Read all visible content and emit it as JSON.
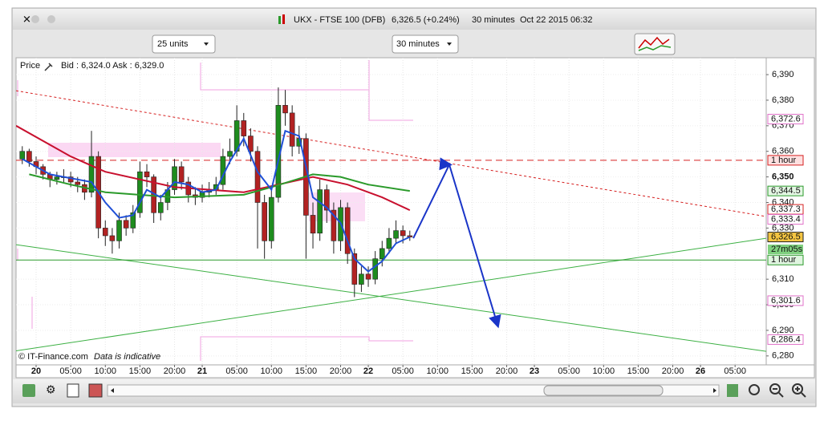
{
  "window": {
    "title": "UKX - FTSE 100 (DFB)",
    "price": "6,326.5 (+0.24%)",
    "interval": "30 minutes",
    "datetime": "Oct 22 2015 06:32"
  },
  "toolbar": {
    "units": "25 units",
    "timeframe": "30 minutes"
  },
  "chart_data": {
    "type": "candlestick",
    "label": "Price",
    "quote": "Bid : 6,324.0 Ask : 6,329.0",
    "copyright": "© IT-Finance.com",
    "note": "Data is indicative",
    "countdown": "27m05s",
    "xlim": [
      -2.9,
      105.5
    ],
    "ylim": [
      6276.5,
      6396.6
    ],
    "grid": true,
    "up_color": "#1e8c1e",
    "down_color": "#b22222",
    "xticks": [
      {
        "value": 0,
        "label": "20"
      },
      {
        "value": 5,
        "label": "05:00"
      },
      {
        "value": 10,
        "label": "10:00"
      },
      {
        "value": 15,
        "label": "15:00"
      },
      {
        "value": 20,
        "label": "20:00"
      },
      {
        "value": 24,
        "label": "21"
      },
      {
        "value": 29,
        "label": "05:00"
      },
      {
        "value": 34,
        "label": "10:00"
      },
      {
        "value": 39,
        "label": "15:00"
      },
      {
        "value": 44,
        "label": "20:00"
      },
      {
        "value": 48,
        "label": "22"
      },
      {
        "value": 53,
        "label": "05:00"
      },
      {
        "value": 58,
        "label": "10:00"
      },
      {
        "value": 63,
        "label": "15:00"
      },
      {
        "value": 68,
        "label": "20:00"
      },
      {
        "value": 72,
        "label": "23"
      },
      {
        "value": 77,
        "label": "05:00"
      },
      {
        "value": 82,
        "label": "10:00"
      },
      {
        "value": 87,
        "label": "15:00"
      },
      {
        "value": 92,
        "label": "20:00"
      },
      {
        "value": 96,
        "label": "26"
      },
      {
        "value": 101,
        "label": "05:00"
      }
    ],
    "yticks": [
      {
        "value": 6280,
        "label": "6,280"
      },
      {
        "value": 6290,
        "label": "6,290"
      },
      {
        "value": 6300,
        "label": "6,300"
      },
      {
        "value": 6310,
        "label": "6,310"
      },
      {
        "value": 6330,
        "label": "6,330"
      },
      {
        "value": 6340,
        "label": "6,340"
      },
      {
        "value": 6350,
        "label": "6,350",
        "bold": true
      },
      {
        "value": 6360,
        "label": "6,360"
      },
      {
        "value": 6370,
        "label": "6,370"
      },
      {
        "value": 6380,
        "label": "6,380"
      },
      {
        "value": 6390,
        "label": "6,390"
      }
    ],
    "x": [
      -2,
      -1,
      0,
      1,
      2,
      3,
      4,
      5,
      6,
      7,
      8,
      9,
      10,
      11,
      12,
      13,
      14,
      15,
      16,
      17,
      18,
      19,
      20,
      21,
      22,
      23,
      24,
      25,
      26,
      27,
      28,
      29,
      30,
      31,
      32,
      33,
      34,
      35,
      36,
      37,
      38,
      39,
      40,
      41,
      42,
      43,
      44,
      45,
      46,
      47,
      48,
      49,
      50,
      51,
      52,
      53,
      54
    ],
    "open": [
      6357,
      6360,
      6356,
      6354,
      6351,
      6349,
      6350,
      6350,
      6348,
      6347,
      6344,
      6358,
      6330,
      6327,
      6325,
      6333,
      6330,
      6336,
      6352,
      6350,
      6336,
      6340,
      6345,
      6354,
      6348,
      6343,
      6342,
      6344,
      6345,
      6347,
      6358,
      6360,
      6372,
      6366,
      6360,
      6340,
      6325,
      6342,
      6378,
      6375,
      6362,
      6365,
      6335,
      6328,
      6345,
      6337,
      6325,
      6338,
      6320,
      6308,
      6312,
      6310,
      6318,
      6322,
      6326,
      6329,
      6327
    ],
    "high": [
      6362,
      6361,
      6358,
      6355,
      6352,
      6352,
      6353,
      6352,
      6350,
      6349,
      6368,
      6360,
      6333,
      6330,
      6336,
      6335,
      6339,
      6356,
      6355,
      6351,
      6343,
      6348,
      6357,
      6356,
      6350,
      6346,
      6347,
      6348,
      6350,
      6361,
      6365,
      6378,
      6375,
      6369,
      6362,
      6343,
      6346,
      6385,
      6384,
      6378,
      6370,
      6367,
      6340,
      6349,
      6347,
      6340,
      6341,
      6340,
      6322,
      6315,
      6315,
      6321,
      6325,
      6330,
      6333,
      6331,
      6329
    ],
    "low": [
      6355,
      6354,
      6351,
      6349,
      6346,
      6347,
      6348,
      6346,
      6344,
      6341,
      6342,
      6326,
      6323,
      6320,
      6322,
      6327,
      6328,
      6334,
      6346,
      6332,
      6333,
      6337,
      6343,
      6345,
      6340,
      6339,
      6340,
      6342,
      6343,
      6345,
      6355,
      6358,
      6362,
      6356,
      6322,
      6318,
      6322,
      6340,
      6370,
      6358,
      6359,
      6318,
      6322,
      6325,
      6332,
      6320,
      6321,
      6316,
      6303,
      6305,
      6307,
      6308,
      6315,
      6320,
      6324,
      6324,
      6325
    ],
    "close": [
      6360,
      6356,
      6354,
      6351,
      6349,
      6350,
      6350,
      6348,
      6347,
      6344,
      6358,
      6330,
      6327,
      6325,
      6333,
      6330,
      6336,
      6352,
      6350,
      6336,
      6340,
      6345,
      6354,
      6348,
      6343,
      6342,
      6344,
      6345,
      6347,
      6358,
      6360,
      6372,
      6366,
      6360,
      6340,
      6325,
      6342,
      6378,
      6375,
      6362,
      6365,
      6335,
      6328,
      6345,
      6337,
      6325,
      6338,
      6320,
      6308,
      6312,
      6310,
      6318,
      6322,
      6326,
      6329,
      6327,
      6326.5
    ],
    "overlays": [
      {
        "color": "#c8102e",
        "width": 2,
        "x": [
          -2.9,
          5,
          10,
          20,
          30,
          40,
          45,
          50,
          54
        ],
        "values": [
          6370,
          6358,
          6352,
          6346,
          6344,
          6350,
          6347,
          6342,
          6337
        ]
      },
      {
        "color": "#2a9a2a",
        "width": 2,
        "x": [
          -1,
          5,
          10,
          20,
          30,
          34,
          40,
          44,
          48,
          54
        ],
        "values": [
          6351,
          6347,
          6344,
          6342,
          6343,
          6346,
          6351,
          6350,
          6347,
          6344.5
        ]
      },
      {
        "color": "#1f4fd6",
        "width": 2,
        "x": [
          -2,
          0,
          2,
          4,
          6,
          8,
          10,
          12,
          14,
          16,
          18,
          20,
          22,
          24,
          26,
          28,
          30,
          32,
          34,
          36,
          38,
          40,
          42,
          44,
          46,
          48,
          50,
          52,
          54
        ],
        "values": [
          6357,
          6354,
          6351,
          6350,
          6349,
          6348,
          6340,
          6334,
          6335,
          6345,
          6342,
          6348,
          6347,
          6344,
          6345,
          6356,
          6365,
          6352,
          6345,
          6368,
          6366,
          6342,
          6338,
          6332,
          6318,
          6313,
          6317,
          6324,
          6326.5
        ]
      }
    ],
    "trendlines": [
      {
        "color": "#d62020",
        "dash": true,
        "x": [
          -2.9,
          105.5
        ],
        "values": [
          6383.7,
          6334.5
        ]
      },
      {
        "color": "#3cb043",
        "dash": false,
        "x": [
          -2.9,
          105.5
        ],
        "values": [
          6323.5,
          6281.8
        ]
      },
      {
        "color": "#3cb043",
        "dash": false,
        "x": [
          -2.9,
          105.5
        ],
        "values": [
          6282,
          6326
        ]
      }
    ],
    "projection": {
      "color": "#1a35c8",
      "x": [
        54.5,
        59.7,
        66.7
      ],
      "values": [
        6326,
        6354.8,
        6292
      ]
    },
    "levels": [
      {
        "value": 6356.5,
        "label": "1 hour",
        "color": "#d62020",
        "fill": "#fde0e0",
        "dash": true
      },
      {
        "value": 6317.5,
        "label": "1 hour",
        "color": "#2a9a2a",
        "fill": "#e0f5e0",
        "dash": false
      }
    ],
    "price_labels": [
      {
        "value": 6372.6,
        "label": "6,372.6",
        "color": "#e070c8",
        "fill": "#ffffff"
      },
      {
        "value": 6344.5,
        "label": "6,344.5",
        "color": "#2a9a2a",
        "fill": "#e4f7e4"
      },
      {
        "value": 6337.3,
        "label": "6,337.3",
        "color": "#d62020",
        "fill": "#ffffff"
      },
      {
        "value": 6333.4,
        "label": "6,333.4",
        "color": "#e070c8",
        "fill": "#ffffff"
      },
      {
        "value": 6326.5,
        "label": "6,326.5",
        "color": "#222222",
        "fill": "#f4c542"
      },
      {
        "value": 6301.6,
        "label": "6,301.6",
        "color": "#e070c8",
        "fill": "#ffffff"
      },
      {
        "value": 6286.4,
        "label": "6,286.4",
        "color": "#e070c8",
        "fill": "#ffffff"
      }
    ]
  }
}
